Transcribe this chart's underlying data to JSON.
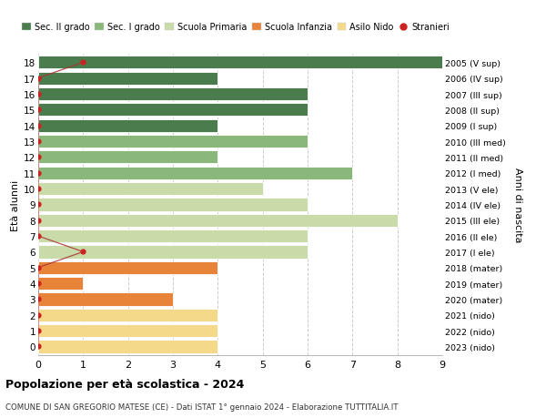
{
  "title": "Popolazione per età scolastica - 2024",
  "subtitle": "COMUNE DI SAN GREGORIO MATESE (CE) - Dati ISTAT 1° gennaio 2024 - Elaborazione TUTTITALIA.IT",
  "ylabel_left": "Età alunni",
  "ylabel_right": "Anni di nascita",
  "xlim": [
    0,
    9
  ],
  "xticks": [
    0,
    1,
    2,
    3,
    4,
    5,
    6,
    7,
    8,
    9
  ],
  "ages": [
    0,
    1,
    2,
    3,
    4,
    5,
    6,
    7,
    8,
    9,
    10,
    11,
    12,
    13,
    14,
    15,
    16,
    17,
    18
  ],
  "right_labels": [
    "2023 (nido)",
    "2022 (nido)",
    "2021 (nido)",
    "2020 (mater)",
    "2019 (mater)",
    "2018 (mater)",
    "2017 (I ele)",
    "2016 (II ele)",
    "2015 (III ele)",
    "2014 (IV ele)",
    "2013 (V ele)",
    "2012 (I med)",
    "2011 (II med)",
    "2010 (III med)",
    "2009 (I sup)",
    "2008 (II sup)",
    "2007 (III sup)",
    "2006 (IV sup)",
    "2005 (V sup)"
  ],
  "bar_values": [
    4,
    4,
    4,
    3,
    1,
    4,
    6,
    6,
    8,
    6,
    5,
    7,
    4,
    6,
    4,
    6,
    6,
    4,
    9
  ],
  "bar_colors": [
    "#f5d98b",
    "#f5d98b",
    "#f5d98b",
    "#e8833a",
    "#e8833a",
    "#e8833a",
    "#c8dba8",
    "#c8dba8",
    "#c8dba8",
    "#c8dba8",
    "#c8dba8",
    "#8ab87a",
    "#8ab87a",
    "#8ab87a",
    "#4a7c4e",
    "#4a7c4e",
    "#4a7c4e",
    "#4a7c4e",
    "#4a7c4e"
  ],
  "stranieri_vals": [
    0,
    0,
    0,
    0,
    0,
    0,
    1,
    0,
    0,
    0,
    0,
    0,
    0,
    0,
    0,
    0,
    0,
    0,
    1
  ],
  "stranieri_dot_x": [
    0,
    0,
    0,
    0,
    0,
    0,
    1,
    0,
    0,
    0,
    0,
    0,
    0,
    0,
    0,
    0,
    0,
    0,
    1
  ],
  "legend_items": [
    {
      "label": "Sec. II grado",
      "color": "#4a7c4e"
    },
    {
      "label": "Sec. I grado",
      "color": "#8ab87a"
    },
    {
      "label": "Scuola Primaria",
      "color": "#c8dba8"
    },
    {
      "label": "Scuola Infanzia",
      "color": "#e8833a"
    },
    {
      "label": "Asilo Nido",
      "color": "#f5d98b"
    },
    {
      "label": "Stranieri",
      "color": "#cc2222"
    }
  ],
  "bg_color": "#ffffff",
  "grid_color": "#cccccc"
}
